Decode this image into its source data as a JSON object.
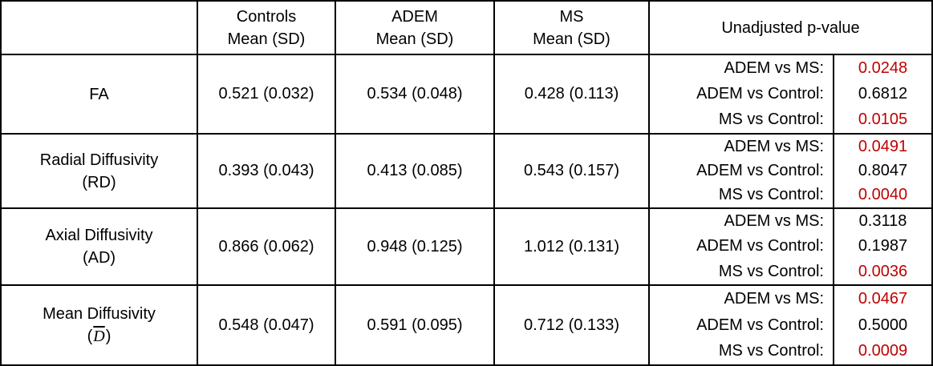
{
  "chart_data": {
    "type": "table",
    "description": "Diffusion metrics (Mean (SD)) for Controls, ADEM and MS groups with unadjusted p-values; significant p-values shown in dark red",
    "header": {
      "corner": "",
      "col_controls": {
        "line1": "Controls",
        "line2": "Mean (SD)"
      },
      "col_adem": {
        "line1": "ADEM",
        "line2": "Mean (SD)"
      },
      "col_ms": {
        "line1": "MS",
        "line2": "Mean (SD)"
      },
      "col_pvalue": "Unadjusted p-value"
    },
    "rows": [
      {
        "metric_line1": "FA",
        "metric_line2": "",
        "controls_mean_sd": "0.521 (0.032)",
        "adem_mean_sd": "0.534 (0.048)",
        "ms_mean_sd": "0.428 (0.113)",
        "p_values": [
          {
            "label": "ADEM vs MS:",
            "value": "0.0248",
            "significant": true
          },
          {
            "label": "ADEM vs Control:",
            "value": "0.6812",
            "significant": false
          },
          {
            "label": "MS vs Control:",
            "value": "0.0105",
            "significant": true
          }
        ]
      },
      {
        "metric_line1": "Radial Diffusivity",
        "metric_line2": "(RD)",
        "controls_mean_sd": "0.393 (0.043)",
        "adem_mean_sd": "0.413 (0.085)",
        "ms_mean_sd": "0.543 (0.157)",
        "p_values": [
          {
            "label": "ADEM vs MS:",
            "value": "0.0491",
            "significant": true
          },
          {
            "label": "ADEM vs Control:",
            "value": "0.8047",
            "significant": false
          },
          {
            "label": "MS vs Control:",
            "value": "0.0040",
            "significant": true
          }
        ]
      },
      {
        "metric_line1": "Axial Diffusivity",
        "metric_line2": "(AD)",
        "controls_mean_sd": "0.866 (0.062)",
        "adem_mean_sd": "0.948 (0.125)",
        "ms_mean_sd": "1.012 (0.131)",
        "p_values": [
          {
            "label": "ADEM vs MS:",
            "value": "0.3118",
            "significant": false
          },
          {
            "label": "ADEM vs Control:",
            "value": "0.1987",
            "significant": false
          },
          {
            "label": "MS vs Control:",
            "value": "0.0036",
            "significant": true
          }
        ]
      },
      {
        "metric_line1": "Mean Diffusivity",
        "metric_line2_open": "(",
        "metric_line2_dbar": "D",
        "metric_line2_close": ")",
        "controls_mean_sd": "0.548 (0.047)",
        "adem_mean_sd": "0.591 (0.095)",
        "ms_mean_sd": "0.712 (0.133)",
        "p_values": [
          {
            "label": "ADEM vs MS:",
            "value": "0.0467",
            "significant": true
          },
          {
            "label": "ADEM vs Control:",
            "value": "0.5000",
            "significant": false
          },
          {
            "label": "MS vs Control:",
            "value": "0.0009",
            "significant": true
          }
        ]
      }
    ],
    "colors": {
      "significant_pvalue": "#C00000",
      "text": "#000000",
      "border": "#000000"
    }
  }
}
